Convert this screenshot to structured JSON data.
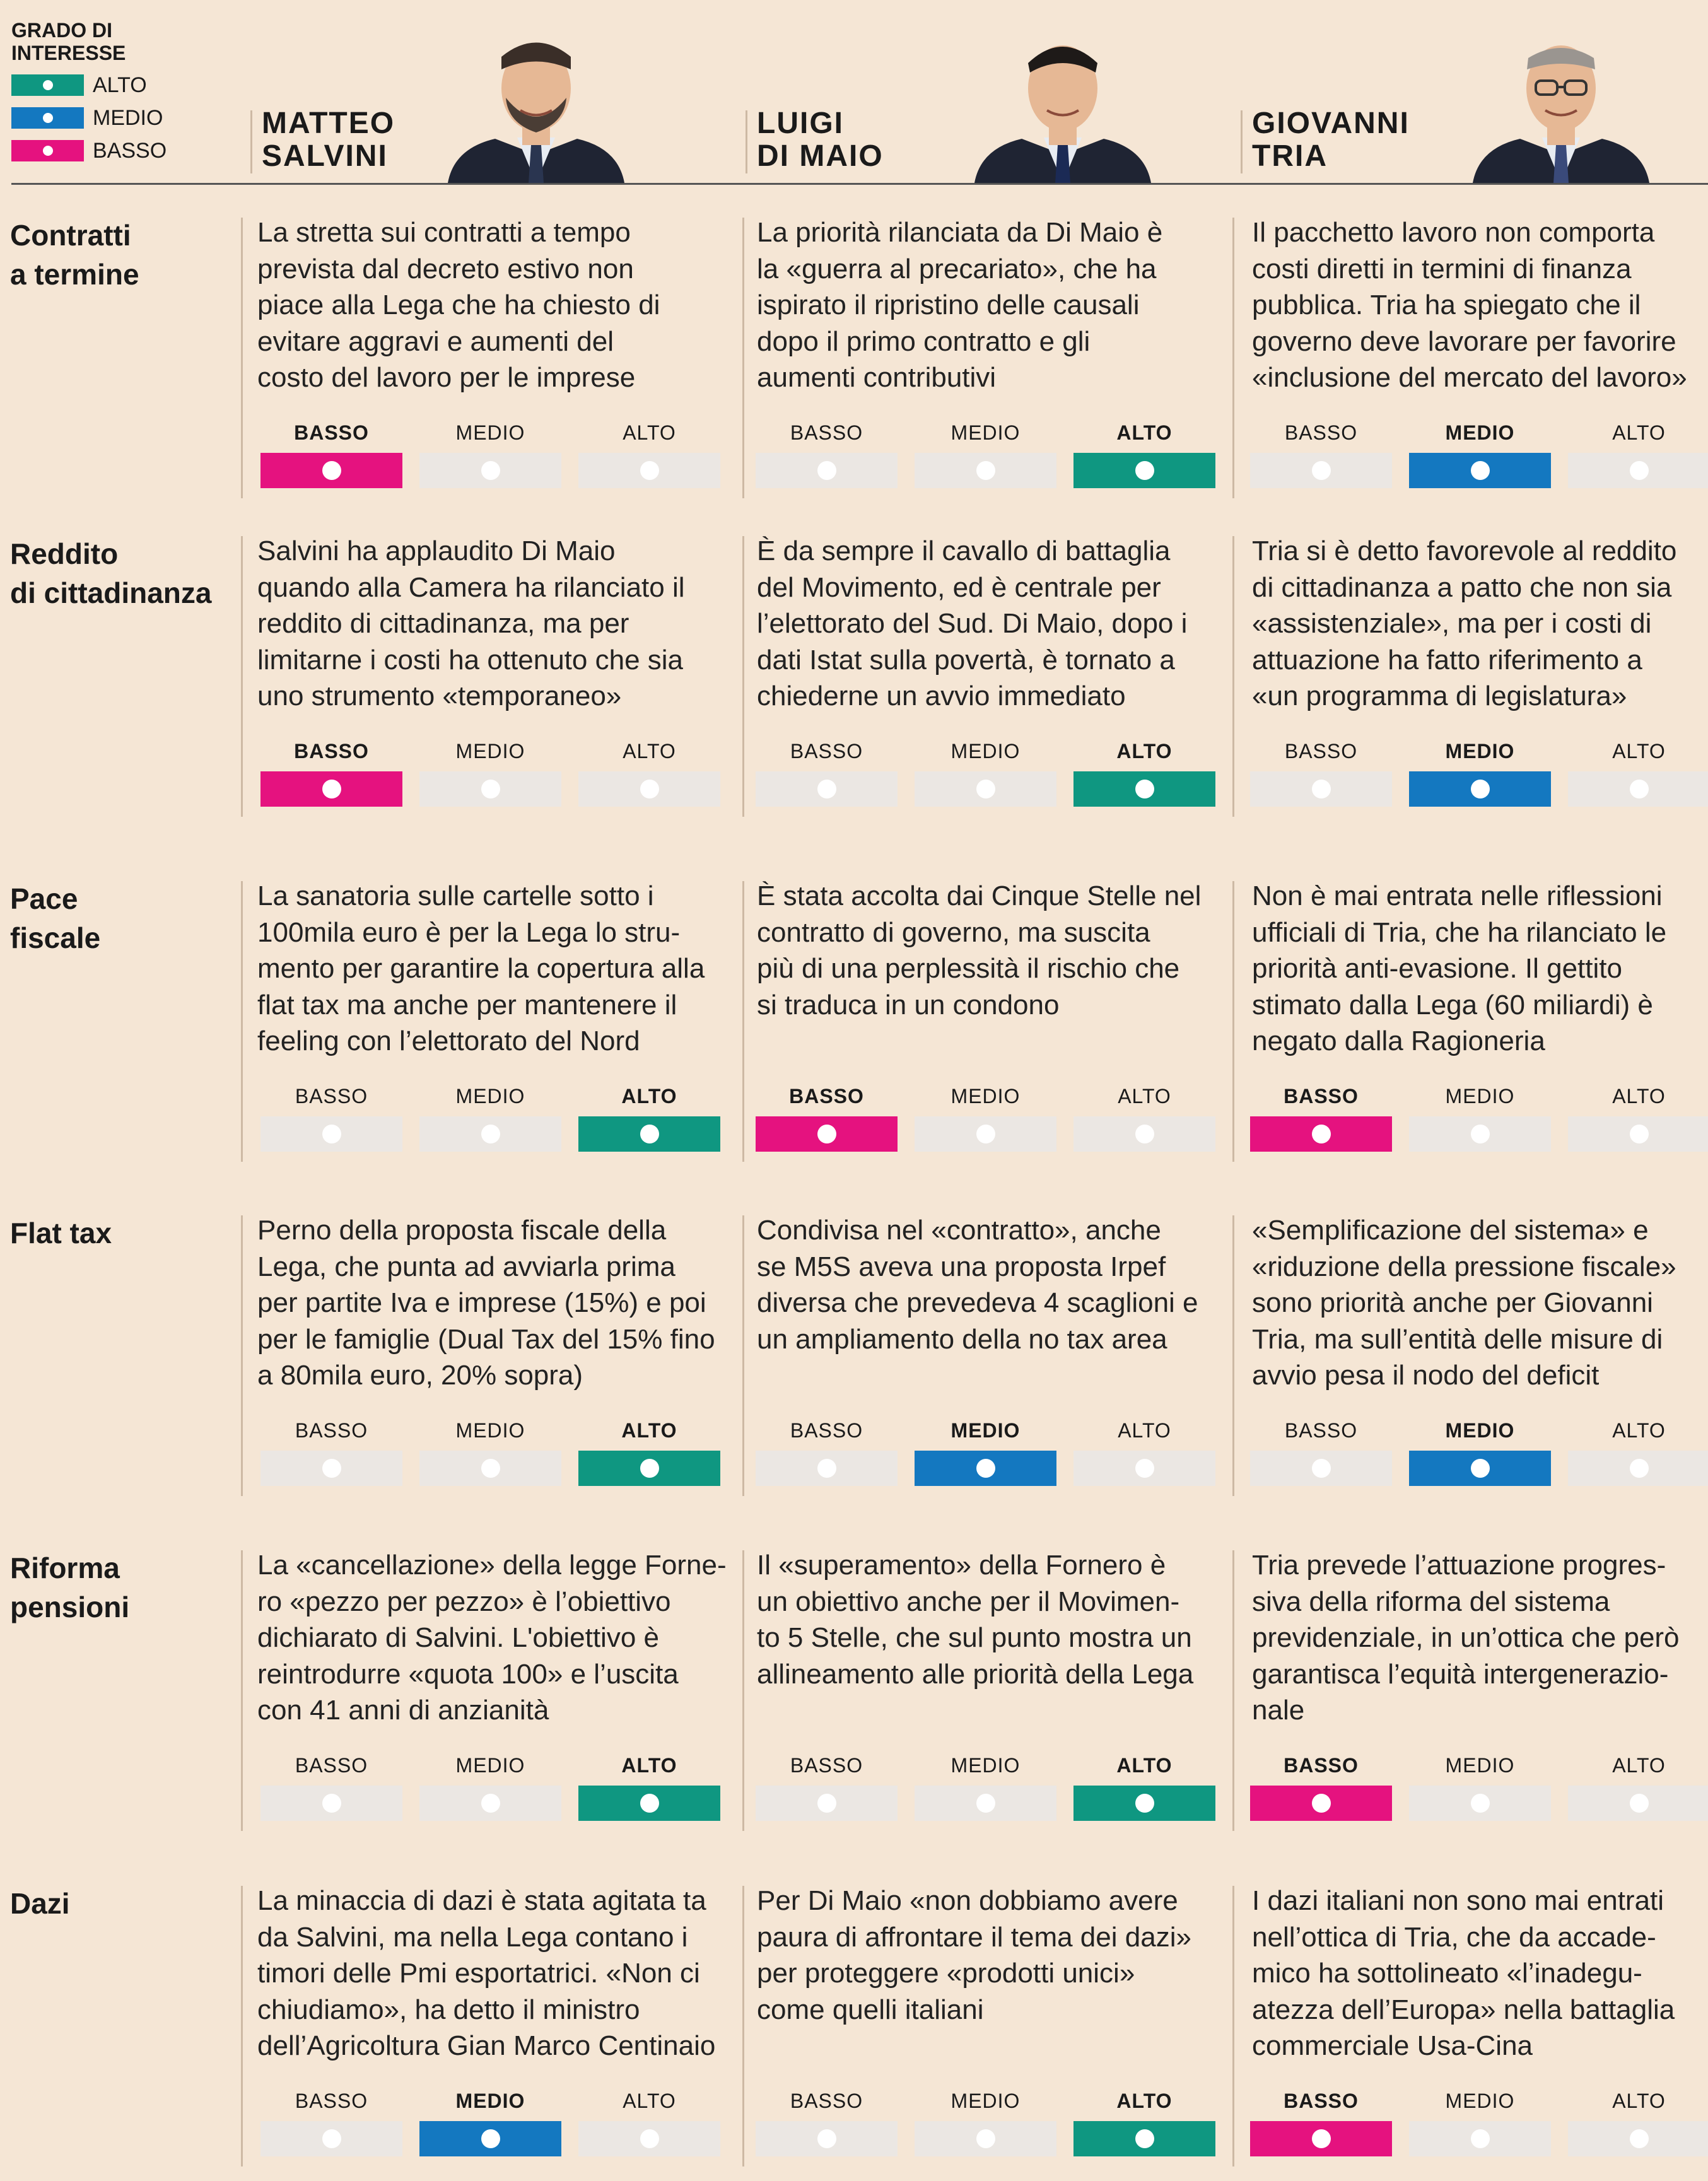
{
  "legend": {
    "title": "GRADO DI INTERESSE",
    "items": [
      {
        "label": "ALTO",
        "color": "#0f9781"
      },
      {
        "label": "MEDIO",
        "color": "#1478c0"
      },
      {
        "label": "BASSO",
        "color": "#e5127f"
      }
    ]
  },
  "level_labels": [
    "BASSO",
    "MEDIO",
    "ALTO"
  ],
  "colors": {
    "BASSO": "#e5127f",
    "MEDIO": "#1478c0",
    "ALTO": "#0f9781",
    "inactive": "#ebe7e3"
  },
  "people": [
    {
      "name": "MATTEO\nSALVINI",
      "portrait_icon": "salvini-portrait"
    },
    {
      "name": "LUIGI\nDI MAIO",
      "portrait_icon": "di-maio-portrait"
    },
    {
      "name": "GIOVANNI\nTRIA",
      "portrait_icon": "tria-portrait"
    }
  ],
  "topics": [
    {
      "title": "Contratti\na termine",
      "entries": [
        {
          "text": [
            "La stretta sui contratti a tempo",
            "prevista dal decreto estivo non",
            "piace alla Lega che ha chiesto di",
            "evitare aggravi e aumenti del",
            "costo del lavoro per le imprese"
          ],
          "level": "BASSO"
        },
        {
          "text": [
            "La priorità rilanciata da Di Maio è",
            "la «guerra al precariato», che ha",
            "ispirato il ripristino delle causali",
            "dopo il primo contratto e gli",
            "aumenti contributivi"
          ],
          "level": "ALTO"
        },
        {
          "text": [
            "Il pacchetto lavoro non comporta",
            "costi diretti in termini di finanza",
            "pubblica. Tria ha spiegato che il",
            "governo deve lavorare per favorire",
            "«inclusione del mercato del lavoro»"
          ],
          "level": "MEDIO"
        }
      ]
    },
    {
      "title": "Reddito\ndi cittadinanza",
      "entries": [
        {
          "text": [
            "Salvini ha applaudito Di Maio",
            "quando alla Camera ha rilanciato il",
            "reddito di cittadinanza, ma per",
            "limitarne i costi ha ottenuto che sia",
            "uno strumento «temporaneo»"
          ],
          "level": "BASSO"
        },
        {
          "text": [
            "È da sempre il cavallo di battaglia",
            "del Movimento, ed è centrale per",
            "l’elettorato del Sud. Di Maio, dopo i",
            "dati Istat sulla povertà, è tornato a",
            "chiederne un avvio immediato"
          ],
          "level": "ALTO"
        },
        {
          "text": [
            "Tria si è detto favorevole al reddito",
            "di cittadinanza a patto che non sia",
            "«assistenziale», ma per i costi di",
            "attuazione ha fatto riferimento a",
            "«un programma di legislatura»"
          ],
          "level": "MEDIO"
        }
      ]
    },
    {
      "title": "Pace\nfiscale",
      "entries": [
        {
          "text": [
            "La sanatoria sulle cartelle sotto i",
            "100mila euro  è per la Lega lo stru-",
            "mento per garantire la copertura alla",
            "flat tax ma anche per mantenere il",
            "feeling con l’elettorato del Nord"
          ],
          "level": "ALTO"
        },
        {
          "text": [
            "È stata accolta dai Cinque Stelle nel",
            "contratto di governo, ma suscita",
            "più di una perplessità il rischio che",
            "si traduca in un condono"
          ],
          "level": "BASSO"
        },
        {
          "text": [
            "Non è mai entrata nelle riflessioni",
            "ufficiali di Tria, che ha rilanciato le",
            "priorità anti-evasione. Il gettito",
            "stimato dalla Lega (60 miliardi) è",
            "negato dalla Ragioneria"
          ],
          "level": "BASSO"
        }
      ]
    },
    {
      "title": "Flat tax",
      "entries": [
        {
          "text": [
            "Perno della proposta fiscale della",
            "Lega, che punta ad avviarla prima",
            "per partite Iva e imprese (15%) e poi",
            "per le famiglie (Dual Tax del 15% fino",
            "a 80mila euro, 20% sopra)"
          ],
          "level": "ALTO"
        },
        {
          "text": [
            "Condivisa nel «contratto», anche",
            "se M5S aveva una proposta Irpef",
            "diversa che prevedeva 4 scaglioni e",
            "un ampliamento della no tax area"
          ],
          "level": "MEDIO"
        },
        {
          "text": [
            "«Semplificazione del sistema» e",
            "«riduzione della pressione fiscale»",
            "sono priorità anche per Giovanni",
            "Tria, ma sull’entità delle misure di",
            "avvio pesa il nodo del deficit"
          ],
          "level": "MEDIO"
        }
      ]
    },
    {
      "title": "Riforma\npensioni",
      "entries": [
        {
          "text": [
            "La «cancellazione» della legge Forne-",
            "ro «pezzo per pezzo» è l’obiettivo",
            "dichiarato di Salvini. L'obiettivo è",
            "reintrodurre «quota 100» e l’uscita",
            "con 41 anni di anzianità"
          ],
          "level": "ALTO"
        },
        {
          "text": [
            "Il «superamento» della Fornero è",
            "un obiettivo anche per il Movimen-",
            "to 5 Stelle, che sul punto mostra un",
            "allineamento alle priorità della Lega"
          ],
          "level": "ALTO"
        },
        {
          "text": [
            "Tria prevede l’attuazione progres-",
            "siva della riforma del sistema",
            "previdenziale, in un’ottica che però",
            "garantisca  l’equità intergenerazio-",
            "nale"
          ],
          "level": "BASSO"
        }
      ]
    },
    {
      "title": "Dazi",
      "entries": [
        {
          "text": [
            "La minaccia di dazi è stata agitata ta",
            "da Salvini, ma nella Lega contano i",
            "timori delle Pmi esportatrici. «Non ci",
            "chiudiamo», ha detto il ministro",
            "dell’Agricoltura Gian Marco Centinaio"
          ],
          "level": "MEDIO"
        },
        {
          "text": [
            "Per Di Maio «non dobbiamo avere",
            "paura di affrontare il tema dei dazi»",
            "per proteggere «prodotti unici»",
            "come quelli italiani"
          ],
          "level": "ALTO"
        },
        {
          "text": [
            "I dazi italiani non sono mai entrati",
            "nell’ottica di Tria, che da accade-",
            "mico ha sottolineato «l’inadegu-",
            "atezza dell’Europa» nella battaglia",
            "commerciale Usa-Cina"
          ],
          "level": "BASSO"
        }
      ]
    }
  ]
}
